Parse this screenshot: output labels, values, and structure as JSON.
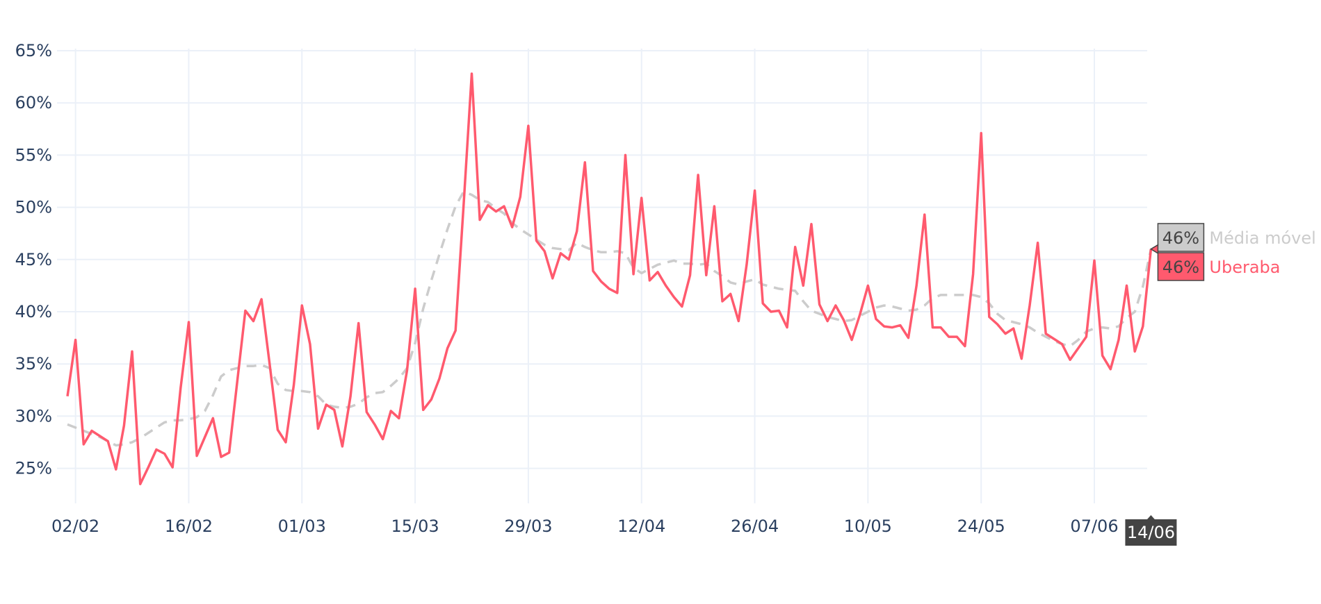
{
  "chart_data": {
    "type": "line",
    "title": "",
    "xlabel": "",
    "ylabel": "",
    "x_start": "01/02",
    "x_end": "14/06",
    "x_tick_labels": [
      "02/02",
      "16/02",
      "01/03",
      "15/03",
      "29/03",
      "12/04",
      "26/04",
      "10/05",
      "24/05",
      "07/06"
    ],
    "x_tick_days": [
      1,
      15,
      29,
      43,
      57,
      71,
      85,
      99,
      113,
      127
    ],
    "y_tick_labels": [
      "25%",
      "30%",
      "35%",
      "40%",
      "45%",
      "50%",
      "55%",
      "60%",
      "65%"
    ],
    "y_tick_values": [
      25,
      30,
      35,
      40,
      45,
      50,
      55,
      60,
      65
    ],
    "ylim": [
      21.6,
      65.3
    ],
    "grid": true,
    "series": [
      {
        "name": "Uberaba",
        "color": "#ff5a6e",
        "dash": "solid",
        "values": [
          31.9,
          37.3,
          27.3,
          28.6,
          28.1,
          27.6,
          24.9,
          29.1,
          36.2,
          23.5,
          25.1,
          26.8,
          26.4,
          25.1,
          32.7,
          39.0,
          26.2,
          28.0,
          29.8,
          26.1,
          26.5,
          33.3,
          40.1,
          39.1,
          41.2,
          35.0,
          28.7,
          27.5,
          33.0,
          40.6,
          36.9,
          28.8,
          31.1,
          30.6,
          27.1,
          31.9,
          38.9,
          30.4,
          29.2,
          27.8,
          30.5,
          29.8,
          34.4,
          42.2,
          30.6,
          31.6,
          33.6,
          36.5,
          38.2,
          50.3,
          62.8,
          48.8,
          50.2,
          49.6,
          50.1,
          48.1,
          51.0,
          57.8,
          46.8,
          45.8,
          43.2,
          45.6,
          45.0,
          47.7,
          54.3,
          43.9,
          42.9,
          42.2,
          41.8,
          55.0,
          43.6,
          50.9,
          43.0,
          43.8,
          42.5,
          41.4,
          40.5,
          43.5,
          53.1,
          43.5,
          50.1,
          41.0,
          41.7,
          39.1,
          44.5,
          51.6,
          40.8,
          40.0,
          40.1,
          38.5,
          46.2,
          42.5,
          48.4,
          40.7,
          39.1,
          40.6,
          39.2,
          37.3,
          39.7,
          42.5,
          39.3,
          38.6,
          38.5,
          38.7,
          37.5,
          42.5,
          49.3,
          38.5,
          38.5,
          37.6,
          37.6,
          36.7,
          43.6,
          57.1,
          39.5,
          38.8,
          37.9,
          38.4,
          35.5,
          40.6,
          46.6,
          37.9,
          37.4,
          36.9,
          35.4,
          36.5,
          37.6,
          44.9,
          35.8,
          34.5,
          37.3,
          42.5,
          36.2,
          38.6,
          46.0
        ]
      },
      {
        "name": "Média móvel ...",
        "color": "#cccccc",
        "dash": "dash",
        "values": [
          29.2,
          28.9,
          28.6,
          28.3,
          28.0,
          27.6,
          27.2,
          27.3,
          27.5,
          27.9,
          28.4,
          28.9,
          29.4,
          29.6,
          29.6,
          29.7,
          29.9,
          30.5,
          32.0,
          33.8,
          34.4,
          34.6,
          34.8,
          34.8,
          34.9,
          34.6,
          33.1,
          32.5,
          32.4,
          32.4,
          32.3,
          31.9,
          31.1,
          30.9,
          30.8,
          30.9,
          31.2,
          31.8,
          32.2,
          32.3,
          32.9,
          33.6,
          34.6,
          37.0,
          40.3,
          43.0,
          45.5,
          47.9,
          50.1,
          51.5,
          51.2,
          50.7,
          50.5,
          49.9,
          49.4,
          48.5,
          47.9,
          47.4,
          46.9,
          46.4,
          46.1,
          46.0,
          45.9,
          46.6,
          46.2,
          45.9,
          45.7,
          45.7,
          45.8,
          45.6,
          44.2,
          43.7,
          44.1,
          44.5,
          44.7,
          44.9,
          44.6,
          44.6,
          44.5,
          44.6,
          43.9,
          43.4,
          42.8,
          42.6,
          42.9,
          43.1,
          42.6,
          42.4,
          42.2,
          42.1,
          42.0,
          41.0,
          40.1,
          39.8,
          39.5,
          39.3,
          39.1,
          39.2,
          39.6,
          40.0,
          40.4,
          40.6,
          40.5,
          40.3,
          40.1,
          40.2,
          40.6,
          41.3,
          41.6,
          41.6,
          41.6,
          41.6,
          41.6,
          41.4,
          40.8,
          39.8,
          39.2,
          39.0,
          38.8,
          38.5,
          38.0,
          37.6,
          37.2,
          36.9,
          36.7,
          37.3,
          38.1,
          38.4,
          38.5,
          38.4,
          38.6,
          39.4,
          40.0,
          42.4,
          46.0
        ]
      }
    ],
    "hover": {
      "x_label": "14/06",
      "items": [
        {
          "value_label": "46%",
          "series_label": "Média móvel ...",
          "color": "#cccccc"
        },
        {
          "value_label": "46%",
          "series_label": "Uberaba",
          "color": "#ff5a6e"
        }
      ]
    }
  }
}
